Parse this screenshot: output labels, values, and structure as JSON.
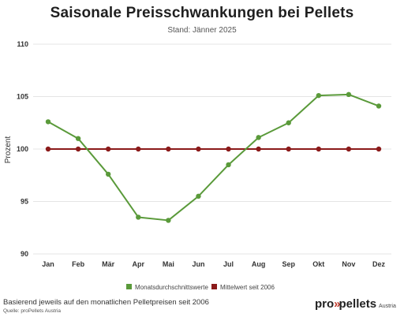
{
  "chart_data": {
    "type": "line",
    "title": "Saisonale Preisschwankungen bei Pellets",
    "subtitle": "Stand: Jänner 2025",
    "ylabel": "Prozent",
    "xlabel": "",
    "categories": [
      "Jan",
      "Feb",
      "Mär",
      "Apr",
      "Mai",
      "Jun",
      "Jul",
      "Aug",
      "Sep",
      "Okt",
      "Nov",
      "Dez"
    ],
    "ylim": [
      90,
      110
    ],
    "yticks": [
      90,
      95,
      100,
      105,
      110
    ],
    "grid": true,
    "legend_position": "bottom-center",
    "series": [
      {
        "name": "Monatsdurchschnittswerte",
        "color": "#5a9a3a",
        "values": [
          102.6,
          101.0,
          97.6,
          93.5,
          93.2,
          95.5,
          98.5,
          101.1,
          102.5,
          105.1,
          105.2,
          104.1
        ]
      },
      {
        "name": "Mittelwert seit 2006",
        "color": "#8b1a1a",
        "values": [
          100,
          100,
          100,
          100,
          100,
          100,
          100,
          100,
          100,
          100,
          100,
          100
        ]
      }
    ]
  },
  "footer": {
    "note": "Basierend jeweils auf den monatlichen Pelletpreisen seit 2006",
    "source": "Quelle: proPellets Austria"
  },
  "logo": {
    "part1": "pro",
    "chevrons": "»",
    "part2": "pellets",
    "tail": "Austria"
  }
}
